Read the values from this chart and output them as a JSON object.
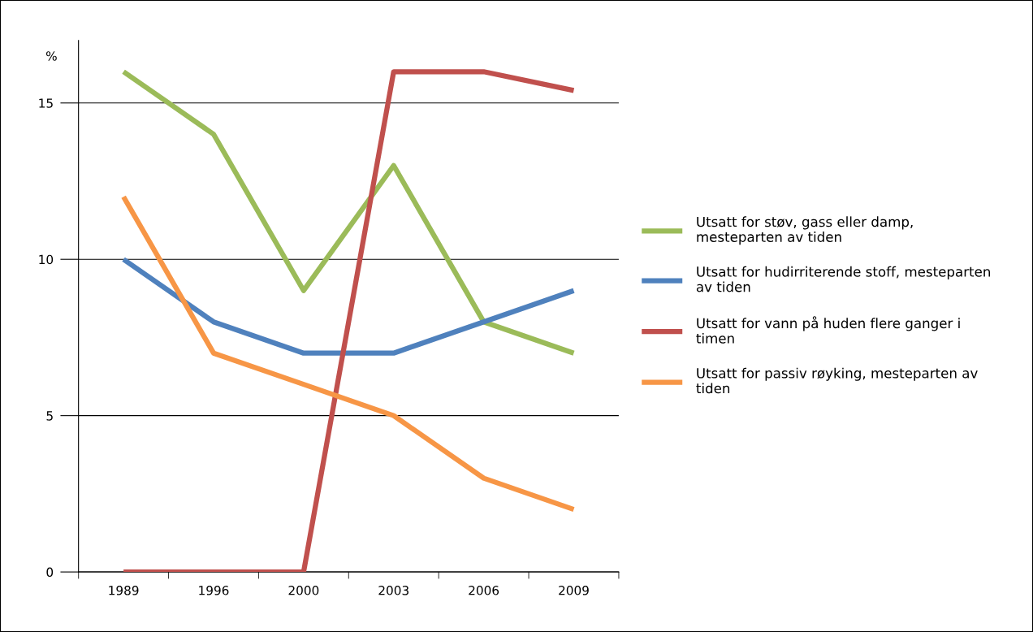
{
  "chart_data": {
    "type": "line",
    "ylabel": "%",
    "categories": [
      "1989",
      "1996",
      "2000",
      "2003",
      "2006",
      "2009"
    ],
    "series": [
      {
        "name": "Utsatt for støv, gass eller damp,\nmesteparten av tiden",
        "color": "#9bbb59",
        "values": [
          16,
          14,
          9,
          13,
          8,
          7
        ]
      },
      {
        "name": "Utsatt for hudirriterende stoff, mesteparten\nav tiden",
        "color": "#4f81bd",
        "values": [
          10,
          8,
          7,
          7,
          8,
          9
        ]
      },
      {
        "name": "Utsatt for vann på huden flere ganger i\ntimen",
        "color": "#c0504d",
        "values": [
          0,
          0,
          0,
          16,
          16,
          15.4
        ]
      },
      {
        "name": "Utsatt for passiv røyking, mesteparten av\ntiden",
        "color": "#f79646",
        "values": [
          12,
          7,
          6,
          5,
          3,
          2
        ]
      }
    ],
    "ylim": [
      0,
      17
    ],
    "yticks": [
      0,
      5,
      10,
      15
    ],
    "grid": "y",
    "legend": "right",
    "marker": "none",
    "line_style": "solid"
  }
}
